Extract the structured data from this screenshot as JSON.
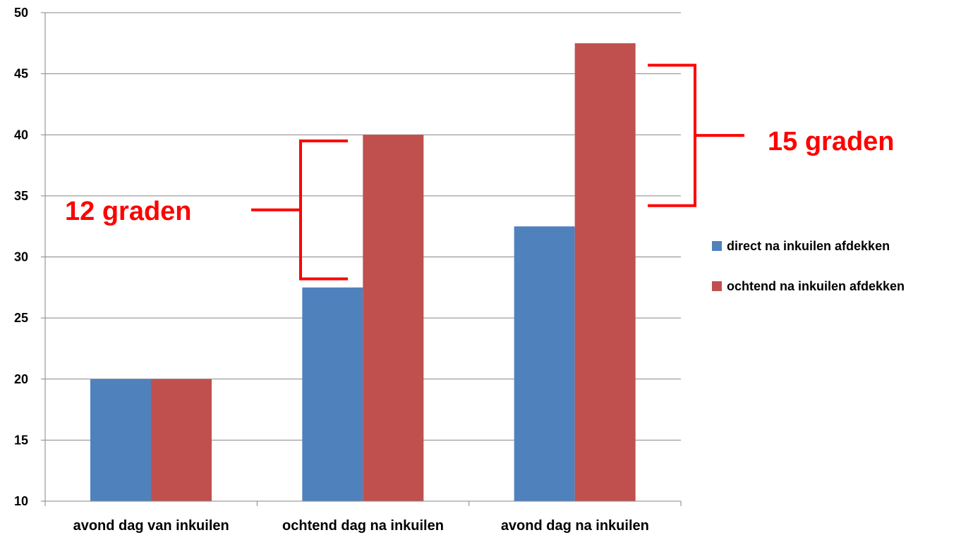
{
  "chart_data": {
    "type": "bar",
    "title": "",
    "xlabel": "",
    "ylabel": "",
    "ylim": [
      10,
      50
    ],
    "yticks": [
      10,
      15,
      20,
      25,
      30,
      35,
      40,
      45,
      50
    ],
    "yticks_text": [
      "10",
      "15",
      "20",
      "25",
      "30",
      "35",
      "40",
      "45",
      "50"
    ],
    "grid": true,
    "legend_position": "right",
    "categories": [
      "avond dag van inkuilen",
      "ochtend dag na inkuilen",
      "avond dag na inkuilen"
    ],
    "series": [
      {
        "name": "direct na inkuilen afdekken",
        "color": "#4F81BD",
        "values": [
          20,
          27.5,
          32.5
        ]
      },
      {
        "name": "ochtend na inkuilen afdekken",
        "color": "#C0504D",
        "values": [
          20,
          40,
          47.5
        ]
      }
    ],
    "annotations": [
      {
        "text": "12 graden",
        "category_index": 1,
        "from": 28.2,
        "to": 39.5,
        "color": "#FF0000"
      },
      {
        "text": "15 graden",
        "category_index": 2,
        "from": 34.2,
        "to": 45.7,
        "color": "#FF0000"
      }
    ]
  }
}
